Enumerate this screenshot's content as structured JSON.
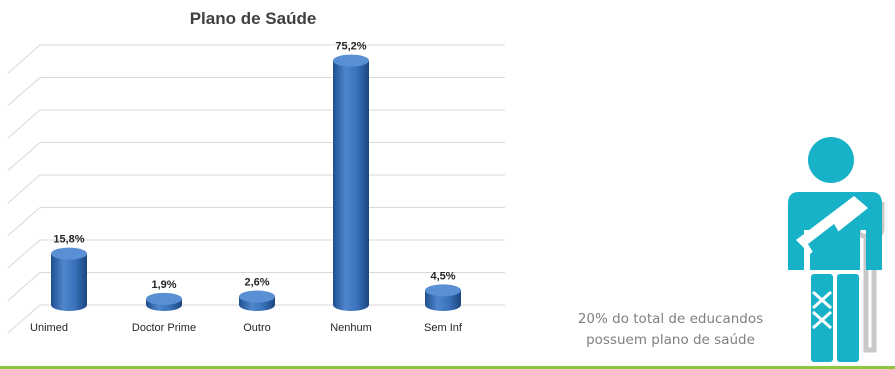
{
  "chart_data": {
    "type": "bar",
    "title": "Plano de Saúde",
    "categories": [
      "Unimed",
      "Doctor Prime",
      "Outro",
      "Nenhum",
      "Sem Inf"
    ],
    "values": [
      15.8,
      1.9,
      2.6,
      75.2,
      4.5
    ],
    "value_labels": [
      "15,8%",
      "1,9%",
      "2,6%",
      "75,2%",
      "4,5%"
    ],
    "ylim": [
      0,
      80
    ],
    "grid": true,
    "legend": "none",
    "colors": {
      "bar": "#2e6bb5",
      "bar_top": "#5b8fd4",
      "grid": "#d9d9d9"
    }
  },
  "annotation": {
    "line1": "20% do total de educandos",
    "line2": "possuem plano de saúde"
  },
  "icon": {
    "name": "injured-person-with-crutch-icon",
    "color": "#17b2c7"
  },
  "footer": {
    "line_color": "#8dc63f"
  }
}
